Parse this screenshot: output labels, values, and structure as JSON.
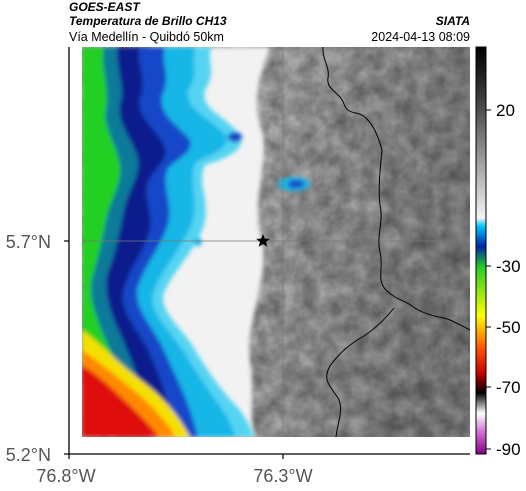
{
  "header": {
    "satellite": "GOES-EAST",
    "product": "Temperatura de Brillo CH13",
    "route": "Vía Medellín - Quibdó 50km",
    "org": "SIATA",
    "datetime": "2024-04-13 08:09"
  },
  "axes": {
    "lat_ticks": [
      {
        "label": "5.7°N"
      },
      {
        "label": "5.2°N"
      }
    ],
    "lon_ticks": [
      {
        "label": "76.8°W"
      },
      {
        "label": "76.3°W"
      }
    ]
  },
  "colorbar": {
    "labels": [
      {
        "value": 20,
        "text": "20"
      },
      {
        "value": -30,
        "text": "-30"
      },
      {
        "value": -50,
        "text": "-50"
      },
      {
        "value": -70,
        "text": "-70"
      },
      {
        "value": -90,
        "text": "-90"
      }
    ]
  },
  "marker": {
    "icon": "star-icon"
  },
  "colors": {
    "deep_blue": "#0a1e8c",
    "cyan": "#16b6e6",
    "green": "#20d020",
    "red": "#e01010",
    "cloud_grey": "#9a9a9a",
    "border": "#000000"
  }
}
